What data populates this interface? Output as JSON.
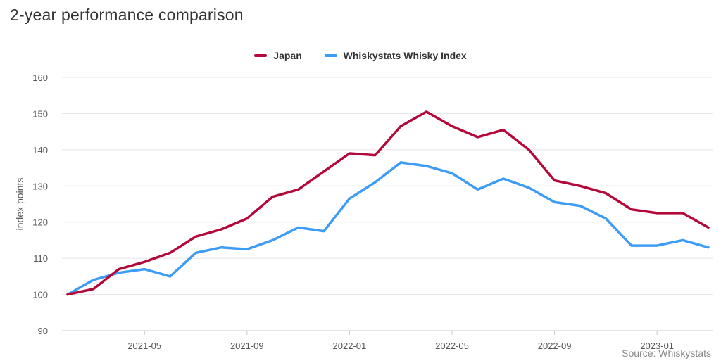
{
  "title": "2-year performance comparison",
  "source": "Source: Whiskystats",
  "colors": {
    "japan": "#b5083a",
    "index": "#3d9cf5",
    "grid": "#e4e4e4"
  },
  "chart_data": {
    "type": "line",
    "title": "2-year performance comparison",
    "xlabel": "",
    "ylabel": "index points",
    "ylim": [
      90,
      160
    ],
    "yticks": [
      90,
      100,
      110,
      120,
      130,
      140,
      150,
      160
    ],
    "xticks": [
      "2021-05",
      "2021-09",
      "2022-01",
      "2022-05",
      "2022-09",
      "2023-01"
    ],
    "x": [
      "2021-02",
      "2021-03",
      "2021-04",
      "2021-05",
      "2021-06",
      "2021-07",
      "2021-08",
      "2021-09",
      "2021-10",
      "2021-11",
      "2021-12",
      "2022-01",
      "2022-02",
      "2022-03",
      "2022-04",
      "2022-05",
      "2022-06",
      "2022-07",
      "2022-08",
      "2022-09",
      "2022-10",
      "2022-11",
      "2022-12",
      "2023-01",
      "2023-02",
      "2023-03"
    ],
    "legend": "top-center",
    "series": [
      {
        "name": "Japan",
        "color": "#b5083a",
        "values": [
          100,
          101.5,
          107,
          109,
          111.5,
          116,
          118,
          121,
          127,
          129,
          134,
          139,
          138.5,
          146.5,
          150.5,
          146.5,
          143.5,
          145.5,
          140,
          131.5,
          130,
          128,
          123.5,
          122.5,
          122.5,
          118.5
        ]
      },
      {
        "name": "Whiskystats Whisky Index",
        "color": "#3d9cf5",
        "values": [
          100,
          104,
          106,
          107,
          105,
          111.5,
          113,
          112.5,
          115,
          118.5,
          117.5,
          126.5,
          131,
          136.5,
          135.5,
          133.5,
          129,
          132,
          129.5,
          125.5,
          124.5,
          121,
          113.5,
          113.5,
          115,
          113
        ]
      }
    ]
  }
}
